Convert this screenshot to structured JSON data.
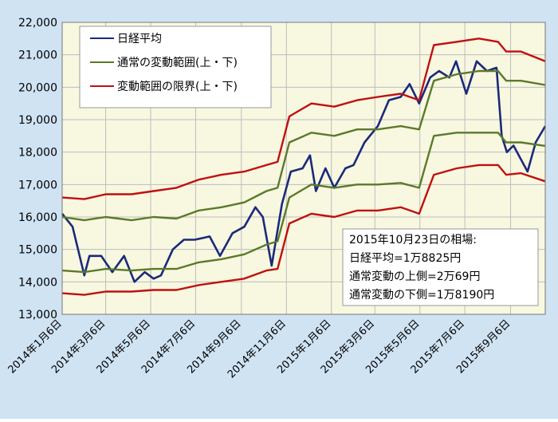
{
  "chart_data": {
    "type": "line",
    "title": "",
    "xlabel": "",
    "ylabel": "",
    "ylim": [
      13000,
      22000
    ],
    "y_ticks": [
      "13,000",
      "14,000",
      "15,000",
      "16,000",
      "17,000",
      "18,000",
      "19,000",
      "20,000",
      "21,000",
      "22,000"
    ],
    "x_tick_labels": [
      "2014年1月6日",
      "2014年3月6日",
      "2014年5月6日",
      "2014年7月6日",
      "2014年9月6日",
      "2014年11月6日",
      "2015年1月6日",
      "2015年3月6日",
      "2015年5月6日",
      "2015年7月6日",
      "2015年9月6日"
    ],
    "x_range": [
      "2014-01-06",
      "2015-10-23"
    ],
    "grid": true,
    "legend_position": "top-left",
    "legend": [
      "日経平均",
      "通常の変動範囲(上・下)",
      "変動範囲の限界(上・下)"
    ],
    "colors": {
      "nikkei": "#1a2a7a",
      "normal_band": "#5a7a2a",
      "limit_band": "#c01010",
      "plot_bg": "#f8f7e0",
      "frame_bg": "#cfe3f3"
    },
    "annotation": {
      "lines": [
        "2015年10月23日の相場:",
        "日経平均=1万8825円",
        "通常変動の上側=2万69円",
        "通常変動の下側=1万8190円"
      ]
    },
    "series": [
      {
        "name": "日経平均",
        "role": "nikkei",
        "points": [
          [
            "2014-01-06",
            16100
          ],
          [
            "2014-01-20",
            15700
          ],
          [
            "2014-02-05",
            14200
          ],
          [
            "2014-02-12",
            14800
          ],
          [
            "2014-02-28",
            14800
          ],
          [
            "2014-03-15",
            14300
          ],
          [
            "2014-03-31",
            14800
          ],
          [
            "2014-04-14",
            14000
          ],
          [
            "2014-04-28",
            14300
          ],
          [
            "2014-05-10",
            14100
          ],
          [
            "2014-05-20",
            14200
          ],
          [
            "2014-06-05",
            15000
          ],
          [
            "2014-06-20",
            15300
          ],
          [
            "2014-07-05",
            15300
          ],
          [
            "2014-07-25",
            15400
          ],
          [
            "2014-08-08",
            14800
          ],
          [
            "2014-08-25",
            15500
          ],
          [
            "2014-09-10",
            15700
          ],
          [
            "2014-09-25",
            16300
          ],
          [
            "2014-10-05",
            16000
          ],
          [
            "2014-10-17",
            14500
          ],
          [
            "2014-10-31",
            16400
          ],
          [
            "2014-11-12",
            17400
          ],
          [
            "2014-11-28",
            17500
          ],
          [
            "2014-12-08",
            17900
          ],
          [
            "2014-12-16",
            16800
          ],
          [
            "2014-12-29",
            17500
          ],
          [
            "2015-01-10",
            16900
          ],
          [
            "2015-01-25",
            17500
          ],
          [
            "2015-02-05",
            17600
          ],
          [
            "2015-02-20",
            18300
          ],
          [
            "2015-03-10",
            18800
          ],
          [
            "2015-03-25",
            19600
          ],
          [
            "2015-04-10",
            19700
          ],
          [
            "2015-04-22",
            20100
          ],
          [
            "2015-05-05",
            19500
          ],
          [
            "2015-05-20",
            20300
          ],
          [
            "2015-06-01",
            20500
          ],
          [
            "2015-06-15",
            20300
          ],
          [
            "2015-06-24",
            20800
          ],
          [
            "2015-07-08",
            19800
          ],
          [
            "2015-07-22",
            20800
          ],
          [
            "2015-08-05",
            20500
          ],
          [
            "2015-08-18",
            20600
          ],
          [
            "2015-08-25",
            18500
          ],
          [
            "2015-09-01",
            18000
          ],
          [
            "2015-09-10",
            18200
          ],
          [
            "2015-09-29",
            17400
          ],
          [
            "2015-10-10",
            18300
          ],
          [
            "2015-10-23",
            18800
          ]
        ]
      },
      {
        "name": "通常の変動範囲(上・下)",
        "role": "normal_upper",
        "points": [
          [
            "2014-01-06",
            16000
          ],
          [
            "2014-02-05",
            15900
          ],
          [
            "2014-03-06",
            16000
          ],
          [
            "2014-04-10",
            15900
          ],
          [
            "2014-05-10",
            16000
          ],
          [
            "2014-06-10",
            15950
          ],
          [
            "2014-07-10",
            16200
          ],
          [
            "2014-08-10",
            16300
          ],
          [
            "2014-09-10",
            16450
          ],
          [
            "2014-10-10",
            16800
          ],
          [
            "2014-10-25",
            16900
          ],
          [
            "2014-11-10",
            18300
          ],
          [
            "2014-12-10",
            18600
          ],
          [
            "2015-01-10",
            18500
          ],
          [
            "2015-02-10",
            18700
          ],
          [
            "2015-03-10",
            18700
          ],
          [
            "2015-04-10",
            18800
          ],
          [
            "2015-05-05",
            18700
          ],
          [
            "2015-05-25",
            20200
          ],
          [
            "2015-06-25",
            20400
          ],
          [
            "2015-07-25",
            20500
          ],
          [
            "2015-08-20",
            20500
          ],
          [
            "2015-08-31",
            20200
          ],
          [
            "2015-09-20",
            20200
          ],
          [
            "2015-10-23",
            20070
          ]
        ]
      },
      {
        "name": "通常の変動範囲(上・下)",
        "role": "normal_lower",
        "points": [
          [
            "2014-01-06",
            14350
          ],
          [
            "2014-02-05",
            14300
          ],
          [
            "2014-03-06",
            14400
          ],
          [
            "2014-04-10",
            14350
          ],
          [
            "2014-05-10",
            14400
          ],
          [
            "2014-06-10",
            14400
          ],
          [
            "2014-07-10",
            14600
          ],
          [
            "2014-08-10",
            14700
          ],
          [
            "2014-09-10",
            14850
          ],
          [
            "2014-10-10",
            15150
          ],
          [
            "2014-10-25",
            15250
          ],
          [
            "2014-11-10",
            16600
          ],
          [
            "2014-12-10",
            17000
          ],
          [
            "2015-01-10",
            16900
          ],
          [
            "2015-02-10",
            17000
          ],
          [
            "2015-03-10",
            17000
          ],
          [
            "2015-04-10",
            17050
          ],
          [
            "2015-05-05",
            16900
          ],
          [
            "2015-05-25",
            18500
          ],
          [
            "2015-06-25",
            18600
          ],
          [
            "2015-07-25",
            18600
          ],
          [
            "2015-08-20",
            18600
          ],
          [
            "2015-08-31",
            18300
          ],
          [
            "2015-09-20",
            18300
          ],
          [
            "2015-10-23",
            18190
          ]
        ]
      },
      {
        "name": "変動範囲の限界(上・下)",
        "role": "limit_upper",
        "points": [
          [
            "2014-01-06",
            16600
          ],
          [
            "2014-02-05",
            16550
          ],
          [
            "2014-03-06",
            16700
          ],
          [
            "2014-04-10",
            16700
          ],
          [
            "2014-05-10",
            16800
          ],
          [
            "2014-06-10",
            16900
          ],
          [
            "2014-07-10",
            17150
          ],
          [
            "2014-08-10",
            17300
          ],
          [
            "2014-09-10",
            17400
          ],
          [
            "2014-10-10",
            17600
          ],
          [
            "2014-10-25",
            17700
          ],
          [
            "2014-11-10",
            19100
          ],
          [
            "2014-12-10",
            19500
          ],
          [
            "2015-01-10",
            19400
          ],
          [
            "2015-02-10",
            19600
          ],
          [
            "2015-03-10",
            19700
          ],
          [
            "2015-04-10",
            19800
          ],
          [
            "2015-05-05",
            19600
          ],
          [
            "2015-05-25",
            21300
          ],
          [
            "2015-06-25",
            21400
          ],
          [
            "2015-07-25",
            21500
          ],
          [
            "2015-08-20",
            21400
          ],
          [
            "2015-08-31",
            21100
          ],
          [
            "2015-09-20",
            21100
          ],
          [
            "2015-10-23",
            20800
          ]
        ]
      },
      {
        "name": "変動範囲の限界(上・下)",
        "role": "limit_lower",
        "points": [
          [
            "2014-01-06",
            13650
          ],
          [
            "2014-02-05",
            13600
          ],
          [
            "2014-03-06",
            13700
          ],
          [
            "2014-04-10",
            13700
          ],
          [
            "2014-05-10",
            13750
          ],
          [
            "2014-06-10",
            13750
          ],
          [
            "2014-07-10",
            13900
          ],
          [
            "2014-08-10",
            14000
          ],
          [
            "2014-09-10",
            14100
          ],
          [
            "2014-10-10",
            14350
          ],
          [
            "2014-10-25",
            14400
          ],
          [
            "2014-11-10",
            15800
          ],
          [
            "2014-12-10",
            16100
          ],
          [
            "2015-01-10",
            16000
          ],
          [
            "2015-02-10",
            16200
          ],
          [
            "2015-03-10",
            16200
          ],
          [
            "2015-04-10",
            16300
          ],
          [
            "2015-05-05",
            16100
          ],
          [
            "2015-05-25",
            17300
          ],
          [
            "2015-06-25",
            17500
          ],
          [
            "2015-07-25",
            17600
          ],
          [
            "2015-08-20",
            17600
          ],
          [
            "2015-08-31",
            17300
          ],
          [
            "2015-09-20",
            17350
          ],
          [
            "2015-10-23",
            17100
          ]
        ]
      }
    ]
  }
}
